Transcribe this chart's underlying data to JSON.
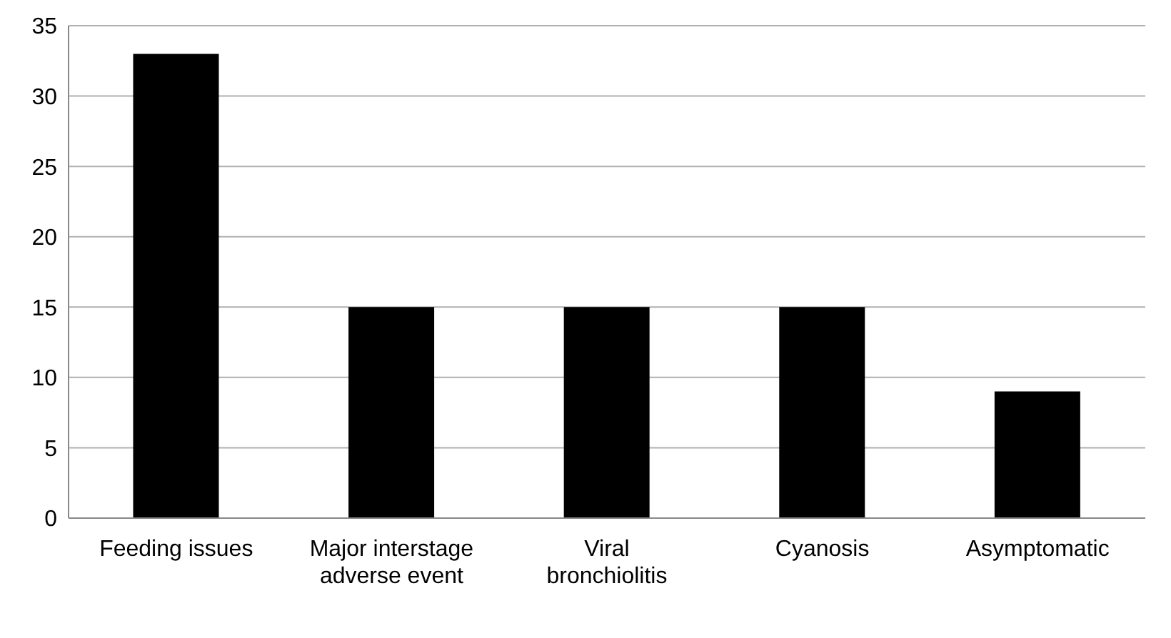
{
  "chart_data": {
    "type": "bar",
    "categories": [
      "Feeding issues",
      "Major interstage adverse event",
      "Viral bronchiolitis",
      "Cyanosis",
      "Asymptomatic"
    ],
    "values": [
      33,
      15,
      15,
      15,
      9
    ],
    "color": "#000000",
    "ylim": [
      0,
      35
    ],
    "yticks": [
      0,
      5,
      10,
      15,
      20,
      25,
      30,
      35
    ],
    "grid": "y"
  }
}
